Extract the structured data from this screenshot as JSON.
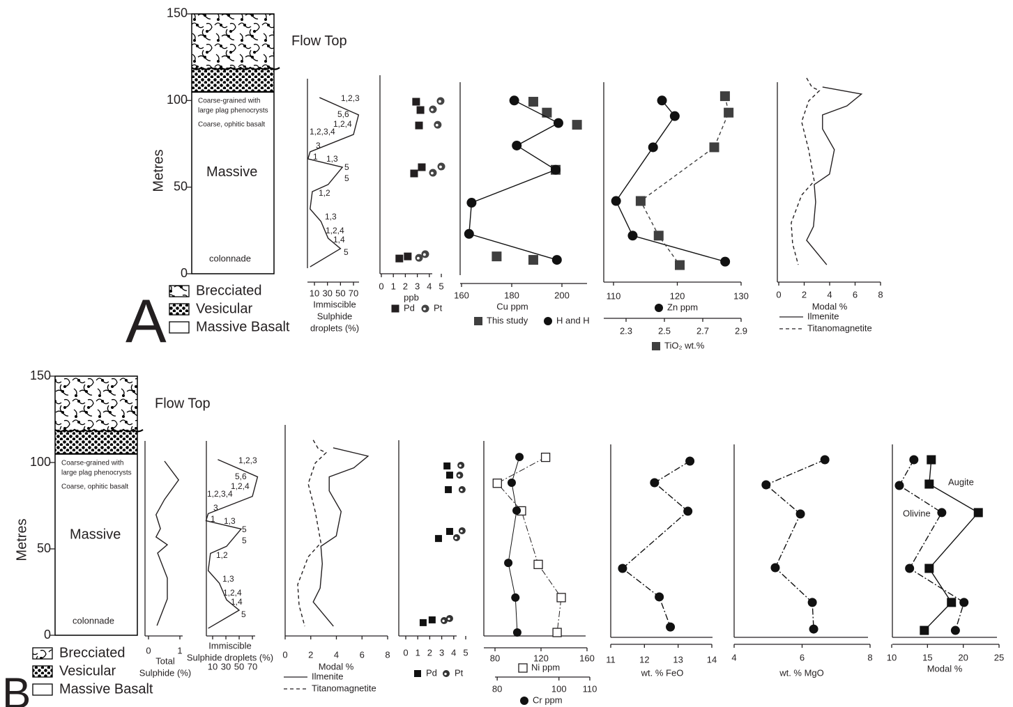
{
  "panel_labels": [
    "A",
    "B"
  ],
  "chart_data": [
    {
      "type": "strat-column",
      "ylabel": "Metres",
      "ylim": [
        0,
        150
      ],
      "yticks": [
        0,
        50,
        100,
        150
      ],
      "units": [
        {
          "name": "Brecciated",
          "top": 150,
          "base": 119
        },
        {
          "name": "Vesicular",
          "top": 119,
          "base": 105
        },
        {
          "name": "Massive Basalt",
          "top": 105,
          "base": 0
        }
      ],
      "flow_top": "Flow Top",
      "notes": [
        "Coarse-grained with",
        "large plag phenocrysts",
        "Coarse, ophitic basalt"
      ],
      "facies": "Massive",
      "base_note": "colonnade"
    },
    {
      "type": "profile",
      "xlabel": [
        "Immiscible",
        "Sulphide",
        "droplets (%)"
      ],
      "xlim": [
        0,
        75
      ],
      "xticks": [
        10,
        30,
        50,
        70
      ],
      "ylim": [
        0,
        150
      ],
      "series": [
        {
          "line": "solid",
          "color": "#231f20",
          "x": [
            17.8,
            77.8,
            70,
            3.3,
            0,
            53,
            31,
            6.7,
            3.3,
            20,
            31,
            50,
            3.3
          ],
          "y": [
            101.7,
            91.7,
            80.4,
            70.4,
            66.3,
            61.5,
            51.5,
            47.4,
            37.4,
            30.2,
            20.5,
            14.5,
            4
          ]
        }
      ],
      "annotations": [
        "1,2,3",
        "5,6",
        "1,2,4",
        "1,2,3,4",
        "3",
        "1",
        "1,3",
        "5",
        "5",
        "1,2",
        "1,3",
        "1,2,4",
        "1,4",
        "5"
      ]
    },
    {
      "type": "profile",
      "xlabel": "ppb",
      "xlim": [
        0,
        5
      ],
      "xticks": [
        0,
        1,
        2,
        3,
        4,
        5
      ],
      "ylim": [
        0,
        150
      ],
      "series": [
        {
          "name": "Pd",
          "marker": "square",
          "color": "#231f20",
          "x": [
            2.9,
            3.26,
            3.14,
            3.37,
            2.73,
            2.2,
            1.5
          ],
          "y": [
            99.3,
            94.5,
            85.6,
            61.5,
            57.9,
            10,
            8.8
          ]
        },
        {
          "name": "Pt",
          "marker": "dotted-circle",
          "color": "#444444",
          "x": [
            4.94,
            4.3,
            4.7,
            5,
            4.3,
            3.66,
            3.14
          ],
          "y": [
            99.7,
            94.9,
            86,
            61.9,
            58.3,
            11.3,
            9.2
          ]
        }
      ]
    },
    {
      "type": "profile",
      "xlabel": "Cu ppm",
      "xlim": [
        160,
        210
      ],
      "xticks": [
        160,
        180,
        200
      ],
      "ylim": [
        0,
        150
      ],
      "series": [
        {
          "name": "This study",
          "marker": "square",
          "color": "#3f3f3f",
          "x": [
            188.6,
            194,
            206,
            197.5,
            174,
            188.6
          ],
          "y": [
            99.3,
            93,
            86,
            60,
            10,
            8
          ]
        },
        {
          "name": "H and H",
          "marker": "circle",
          "line": "solid",
          "color": "#111111",
          "x": [
            181,
            198.6,
            182,
            197.5,
            164,
            163,
            198
          ],
          "y": [
            100,
            87,
            74,
            60,
            41,
            23,
            8
          ]
        }
      ]
    },
    {
      "type": "profile",
      "xlim": [
        108,
        130
      ],
      "xticks": [
        110,
        120,
        130
      ],
      "x2lim": [
        2.24,
        2.9
      ],
      "x2ticks": [
        2.3,
        2.5,
        2.7,
        2.9
      ],
      "ylim": [
        0,
        150
      ],
      "series": [
        {
          "name": "Zn ppm",
          "marker": "circle",
          "line": "solid",
          "color": "#111111",
          "x": [
            117.6,
            119.6,
            116.2,
            110.4,
            113,
            127.5
          ],
          "y": [
            100,
            91,
            73,
            42,
            22,
            7
          ]
        },
        {
          "name": "TiO₂ wt.%",
          "axis": "x2",
          "marker": "square",
          "line": "dashed",
          "color": "#3f3f3f",
          "x": [
            2.816,
            2.835,
            2.76,
            2.376,
            2.47,
            2.58
          ],
          "y": [
            102.5,
            93,
            73,
            42,
            22,
            5
          ]
        }
      ]
    },
    {
      "type": "profile",
      "xlabel": "Modal %",
      "xlim": [
        0,
        8
      ],
      "xticks": [
        0,
        2,
        4,
        6,
        8
      ],
      "ylim": [
        0,
        150
      ],
      "series": [
        {
          "name": "Ilmenite",
          "line": "solid",
          "color": "#231f20",
          "x": [
            3.44,
            6.5,
            5.36,
            3.44,
            3.44,
            4.37,
            3.99,
            2.79,
            2.9,
            2.73,
            2.19,
            3.77
          ],
          "y": [
            107.8,
            103.7,
            96.9,
            91.7,
            83.6,
            71.6,
            57.5,
            51.5,
            41.4,
            27.3,
            19.3,
            5.2
          ]
        },
        {
          "name": "Titanomagnetite",
          "line": "dashed",
          "color": "#231f20",
          "x": [
            2.19,
            2.6,
            3.2,
            2.35,
            1.8,
            2.35,
            2.79,
            1.8,
            0.98,
            1.09,
            1.53
          ],
          "y": [
            113,
            107.8,
            105.7,
            99.7,
            87.7,
            71.6,
            53.5,
            45.4,
            29.4,
            17.3,
            5.2
          ]
        }
      ]
    },
    {
      "type": "strat-column",
      "ylabel": "Metres",
      "ylim": [
        0,
        150
      ],
      "yticks": [
        0,
        50,
        100,
        150
      ],
      "units": [
        {
          "name": "Brecciated",
          "top": 150,
          "base": 119
        },
        {
          "name": "Vesicular",
          "top": 119,
          "base": 105
        },
        {
          "name": "Massive Basalt",
          "top": 105,
          "base": 0
        }
      ],
      "flow_top": "Flow Top",
      "notes": [
        "Coarse-grained with",
        "large plag phenocrysts",
        "Coarse, ophitic basalt"
      ],
      "facies": "Massive",
      "base_note": "colonnade"
    },
    {
      "type": "profile",
      "xlabel": [
        "Total",
        "Sulphide (%)"
      ],
      "xlim": [
        0,
        1.2
      ],
      "xticks": [
        0,
        1
      ],
      "ylim": [
        0,
        150
      ],
      "series": [
        {
          "line": "solid",
          "color": "#231f20",
          "x": [
            0.51,
            0.96,
            0.51,
            0.24,
            0.38,
            0.24,
            0.6,
            0.29,
            0.6,
            0.6,
            0.27
          ],
          "y": [
            100.8,
            89.9,
            78.6,
            69.8,
            61.7,
            56.9,
            52.4,
            47.6,
            33.1,
            21,
            5.6
          ]
        }
      ]
    },
    {
      "type": "profile",
      "xlabel": [
        "Immiscible",
        "Sulphide droplets (%)"
      ],
      "xlim": [
        0,
        75
      ],
      "xticks": [
        10,
        30,
        50,
        70
      ],
      "ylim": [
        0,
        150
      ],
      "series": [
        {
          "line": "solid",
          "color": "#231f20",
          "x": [
            17.8,
            77.8,
            70,
            3.3,
            0,
            53,
            31,
            6.7,
            3.3,
            20,
            31,
            50,
            3.3
          ],
          "y": [
            101.7,
            91.7,
            80.4,
            70.4,
            66.3,
            61.5,
            51.5,
            47.4,
            37.4,
            30.2,
            20.5,
            14.5,
            4
          ]
        }
      ],
      "annotations": [
        "1,2,3",
        "5,6",
        "1,2,4",
        "1,2,3,4",
        "3",
        "1",
        "1,3",
        "5",
        "5",
        "1,2",
        "1,3",
        "1,2,4",
        "1,4",
        "5"
      ]
    },
    {
      "type": "profile",
      "xlabel": "Modal %",
      "xlim": [
        0,
        8
      ],
      "xticks": [
        0,
        2,
        4,
        6,
        8
      ],
      "ylim": [
        0,
        150
      ],
      "series": [
        {
          "name": "Ilmenite",
          "line": "solid",
          "color": "#231f20",
          "x": [
            3.75,
            6.47,
            5.36,
            3.44,
            3.44,
            4.37,
            3.99,
            2.79,
            2.9,
            2.73,
            2.19,
            3.77
          ],
          "y": [
            108.5,
            103.7,
            96.9,
            91.7,
            83.6,
            71.6,
            57.5,
            51.5,
            41.4,
            27.3,
            19.3,
            5.2
          ]
        },
        {
          "name": "Titanomagnetite",
          "line": "dashed",
          "color": "#231f20",
          "x": [
            2.19,
            2.6,
            3.2,
            2.35,
            1.8,
            2.35,
            2.79,
            1.8,
            0.98,
            1.09,
            1.53
          ],
          "y": [
            113,
            107.8,
            105.7,
            99.7,
            87.7,
            71.6,
            53.5,
            45.4,
            29.4,
            17.3,
            5.2
          ]
        }
      ]
    },
    {
      "type": "profile",
      "xlim": [
        0,
        5
      ],
      "xticks": [
        0,
        1,
        2,
        3,
        4,
        5
      ],
      "ylim": [
        0,
        150
      ],
      "series": [
        {
          "name": "Pd",
          "marker": "square",
          "color": "#111111",
          "x": [
            3.44,
            3.66,
            3.55,
            3.66,
            2.73,
            2.2,
            1.45
          ],
          "y": [
            98,
            92.7,
            84.3,
            60.1,
            56,
            8.9,
            7.3
          ]
        },
        {
          "name": "Pt",
          "marker": "dotted-circle",
          "color": "#333333",
          "x": [
            4.6,
            4.5,
            4.7,
            4.7,
            4.24,
            3.66,
            3.2
          ],
          "y": [
            98.4,
            92.7,
            84.3,
            60.5,
            56.5,
            9.7,
            8.5
          ]
        }
      ]
    },
    {
      "type": "profile",
      "xlim": [
        70,
        160
      ],
      "xticks": [
        80,
        120,
        160
      ],
      "x2lim": [
        75,
        110
      ],
      "x2ticks": [
        80,
        100,
        110
      ],
      "ylim": [
        0,
        150
      ],
      "series": [
        {
          "name": "Ni ppm",
          "marker": "open-square",
          "line": "dashdot",
          "color": "#231f20",
          "x": [
            124,
            82,
            103,
            117.6,
            137.6,
            134
          ],
          "y": [
            103,
            88,
            72,
            41,
            21.8,
            1.6
          ]
        },
        {
          "name": "Cr ppm",
          "axis": "x2",
          "marker": "circle",
          "line": "solid",
          "color": "#111111",
          "x": [
            87.2,
            84.7,
            86.3,
            83.6,
            85.9,
            86.5
          ],
          "y": [
            103.2,
            88.3,
            72.2,
            41.9,
            21.8,
            1.6
          ]
        }
      ]
    },
    {
      "type": "profile",
      "xlabel": "wt. % FeO",
      "xlim": [
        11,
        14
      ],
      "xticks": [
        11,
        12,
        13,
        14
      ],
      "ylim": [
        0,
        150
      ],
      "series": [
        {
          "marker": "circle",
          "line": "dashdot",
          "color": "#111111",
          "x": [
            13.35,
            12.3,
            13.29,
            11.35,
            12.44,
            12.77
          ],
          "y": [
            100.8,
            88.3,
            71.8,
            38.7,
            22.2,
            4.8
          ]
        }
      ]
    },
    {
      "type": "profile",
      "xlabel": "wt. % MgO",
      "xlim": [
        4,
        8
      ],
      "xticks": [
        4,
        6,
        8
      ],
      "ylim": [
        0,
        150
      ],
      "series": [
        {
          "marker": "circle",
          "line": "dashdot",
          "color": "#111111",
          "x": [
            6.67,
            4.94,
            5.95,
            5.21,
            6.3,
            6.34
          ],
          "y": [
            101.6,
            87.1,
            70.2,
            39.1,
            19,
            3.6
          ]
        }
      ]
    },
    {
      "type": "profile",
      "xlabel": "Modal %",
      "xlim": [
        10,
        25
      ],
      "xticks": [
        10,
        15,
        20,
        25
      ],
      "ylim": [
        0,
        150
      ],
      "series": [
        {
          "name": "Augite",
          "marker": "square",
          "line": "solid",
          "color": "#111111",
          "x": [
            15.53,
            15.24,
            22.1,
            15.24,
            18.35,
            14.56
          ],
          "y": [
            101.6,
            87.5,
            71,
            38.7,
            19,
            2.8
          ]
        },
        {
          "name": "Olivine",
          "marker": "circle",
          "line": "dashdot",
          "color": "#111111",
          "x": [
            13.1,
            11.07,
            17,
            12.5,
            20.1,
            18.9
          ],
          "y": [
            101.6,
            86.7,
            71,
            38.7,
            19,
            2.8
          ]
        }
      ]
    }
  ]
}
